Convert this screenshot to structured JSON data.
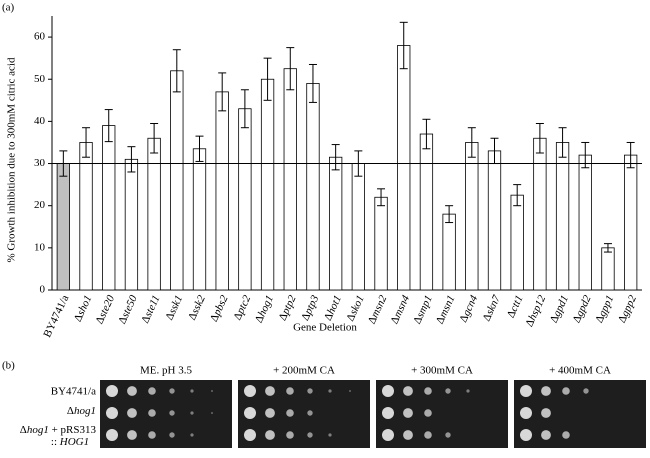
{
  "panel_labels": [
    "(a)",
    "(b)"
  ],
  "chart_data": {
    "type": "bar",
    "ylabel": "% Growth inhibition due to 300mM citric acid",
    "xlabel": "Gene Deletion",
    "categories": [
      "BY4741/a",
      "Δsho1",
      "Δste20",
      "Δste50",
      "Δste11",
      "Δssk1",
      "Δssk2",
      "Δpbs2",
      "Δptc2",
      "Δhog1",
      "Δptp2",
      "Δptp3",
      "Δhot1",
      "Δsko1",
      "Δmsn2",
      "Δmsn4",
      "Δsmp1",
      "Δmsn1",
      "Δgcn4",
      "Δskn7",
      "Δctt1",
      "Δhsp12",
      "Δgpd1",
      "Δgpd2",
      "Δgpp1",
      "Δgpp2"
    ],
    "values": [
      30,
      35,
      39,
      31,
      36,
      52,
      33.5,
      47,
      43,
      50,
      52.5,
      49,
      31.5,
      30,
      22,
      58,
      37,
      18,
      35,
      33,
      22.5,
      36,
      35,
      32,
      10,
      32
    ],
    "errors": [
      3,
      3.5,
      3.8,
      3,
      3.5,
      5,
      3,
      4.5,
      4.5,
      5,
      5,
      4.5,
      3,
      3,
      2,
      5.5,
      3.5,
      2,
      3.5,
      3,
      2.5,
      3.5,
      3.5,
      3,
      1,
      3
    ],
    "colors": [
      "#c0c0c0",
      "#ffffff",
      "#ffffff",
      "#ffffff",
      "#ffffff",
      "#ffffff",
      "#ffffff",
      "#ffffff",
      "#ffffff",
      "#ffffff",
      "#ffffff",
      "#ffffff",
      "#ffffff",
      "#ffffff",
      "#ffffff",
      "#ffffff",
      "#ffffff",
      "#ffffff",
      "#ffffff",
      "#ffffff",
      "#ffffff",
      "#ffffff",
      "#ffffff",
      "#ffffff",
      "#ffffff",
      "#ffffff"
    ],
    "reference_line": 30,
    "ylim": [
      0,
      65
    ],
    "yticks": [
      0,
      10,
      20,
      30,
      40,
      50,
      60
    ]
  },
  "panel_b": {
    "columns": [
      "ME. pH 3.5",
      "+ 200mM CA",
      "+ 300mM CA",
      "+ 400mM CA"
    ],
    "rows": [
      "BY4741/a",
      "Δhog1",
      "Δhog1 + pRS313",
      ":: HOG1"
    ]
  }
}
